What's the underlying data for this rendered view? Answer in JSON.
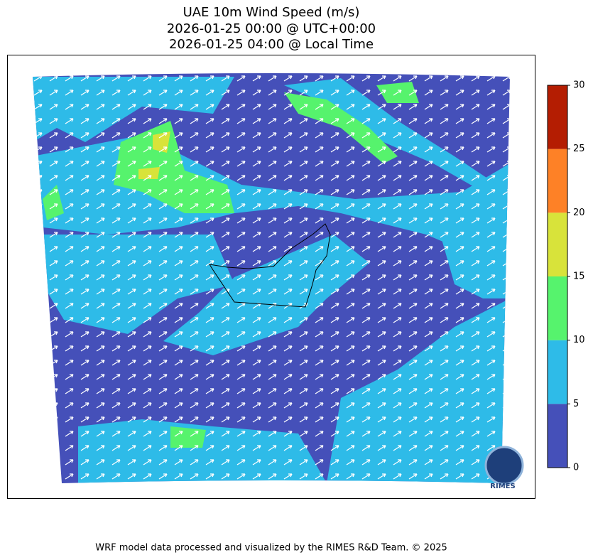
{
  "title": {
    "lines": [
      "UAE 10m Wind Speed (m/s)",
      "2026-01-25 00:00 @ UTC+00:00",
      "2026-01-25 04:00 @ Local Time"
    ]
  },
  "colorbar": {
    "lim": [
      0,
      30
    ],
    "ticks": [
      0,
      5,
      10,
      15,
      20,
      25,
      30
    ],
    "colors": [
      "#4550b9",
      "#2ebbe8",
      "#56f36d",
      "#d8e33a",
      "#fe8126",
      "#b41d02"
    ]
  },
  "logo": {
    "text": "RIMES"
  },
  "footer": "WRF model data processed and visualized by the RIMES R&D Team. © 2025"
}
